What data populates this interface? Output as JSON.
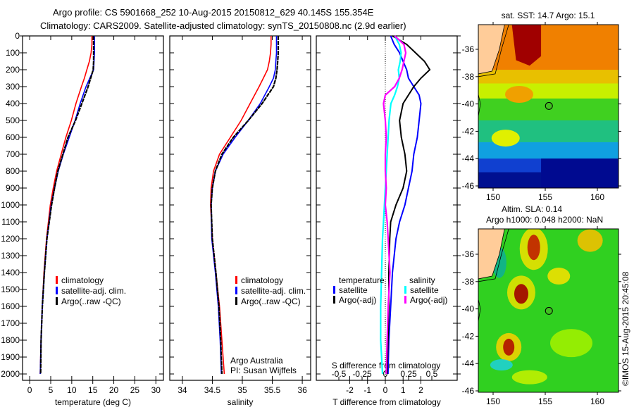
{
  "title": {
    "line1": "Argo profile: CS 5901668_252 10-Aug-2015 20150812_629 40.145S 155.354E",
    "line2": "Climatology: CARS2009. Satellite-adjusted climatology: synTS_20150808.nc (2.9d earlier)"
  },
  "colors": {
    "climatology": "#ff0000",
    "satellite": "#0000ff",
    "argo": "#000000",
    "sal_satellite": "#00ffff",
    "sal_argo": "#ff00ff"
  },
  "chart_data": [
    {
      "type": "line",
      "id": "temperature",
      "xlabel": "temperature (deg C)",
      "ylabel": "",
      "xlim": [
        -1.7,
        31.8
      ],
      "ylim": [
        2070,
        0
      ],
      "xticks": [
        0,
        5,
        10,
        15,
        20,
        25,
        30
      ],
      "yticks": [
        0,
        100,
        200,
        300,
        400,
        500,
        600,
        700,
        800,
        900,
        1000,
        1100,
        1200,
        1300,
        1400,
        1500,
        1600,
        1700,
        1800,
        1900,
        2000
      ],
      "depth": [
        0,
        50,
        100,
        150,
        200,
        250,
        300,
        400,
        500,
        600,
        700,
        800,
        900,
        1000,
        1200,
        1400,
        1600,
        1800,
        2000
      ],
      "series": [
        {
          "name": "climatology",
          "color": "#ff0000",
          "values": [
            14.8,
            14.8,
            14.6,
            14.2,
            13.6,
            13.0,
            12.3,
            11.0,
            9.9,
            8.6,
            7.5,
            6.4,
            5.6,
            4.9,
            4.0,
            3.4,
            3.0,
            2.7,
            2.5
          ]
        },
        {
          "name": "satellite-adj. clim.",
          "color": "#0000ff",
          "values": [
            15.4,
            15.4,
            15.4,
            15.3,
            15.2,
            14.3,
            13.4,
            12.0,
            10.8,
            9.4,
            8.0,
            6.8,
            5.9,
            5.1,
            4.1,
            3.5,
            3.0,
            2.7,
            2.5
          ]
        },
        {
          "name": "Argo(..raw -QC)",
          "color": "#000000",
          "values": [
            15.2,
            15.2,
            15.2,
            15.2,
            15.1,
            14.5,
            13.9,
            12.4,
            10.9,
            9.1,
            7.9,
            6.7,
            5.9,
            5.2,
            4.1,
            3.5,
            3.0,
            2.7,
            2.6
          ]
        }
      ],
      "legend": [
        "climatology",
        "satellite-adj. clim.",
        "Argo(..raw -QC)"
      ],
      "legend_position": "center-left"
    },
    {
      "type": "line",
      "id": "salinity",
      "xlabel": "salinity",
      "xlim": [
        33.79,
        36.14
      ],
      "ylim": [
        2070,
        0
      ],
      "xticks": [
        34,
        34.5,
        35,
        35.5,
        36
      ],
      "depth": [
        0,
        50,
        100,
        150,
        200,
        250,
        300,
        400,
        500,
        600,
        700,
        800,
        900,
        1000,
        1200,
        1400,
        1600,
        1800,
        2000
      ],
      "series": [
        {
          "name": "climatology",
          "color": "#ff0000",
          "values": [
            35.48,
            35.48,
            35.47,
            35.45,
            35.42,
            35.35,
            35.28,
            35.13,
            34.98,
            34.8,
            34.62,
            34.52,
            34.48,
            34.47,
            34.5,
            34.56,
            34.62,
            34.66,
            34.7
          ]
        },
        {
          "name": "satellite-adj. clim.",
          "color": "#0000ff",
          "values": [
            35.57,
            35.57,
            35.57,
            35.56,
            35.55,
            35.52,
            35.45,
            35.3,
            35.1,
            34.88,
            34.68,
            34.55,
            34.5,
            34.48,
            34.49,
            34.55,
            34.6,
            34.63,
            34.65
          ]
        },
        {
          "name": "Argo(..raw -QC)",
          "color": "#000000",
          "values": [
            35.6,
            35.6,
            35.6,
            35.59,
            35.58,
            35.56,
            35.52,
            35.33,
            35.1,
            34.85,
            34.66,
            34.55,
            34.5,
            34.48,
            34.5,
            34.56,
            34.61,
            34.64,
            34.66
          ]
        }
      ],
      "legend": [
        "climatology",
        "satellite-adj. clim.",
        "Argo(..raw -QC)"
      ],
      "annotation": [
        "Argo Australia",
        "PI: Susan Wijffels"
      ]
    },
    {
      "type": "line",
      "id": "difference",
      "xlabel": "T difference from climatology",
      "xlabel_top": "S difference from climatology",
      "xlim": [
        -3.88,
        4.04
      ],
      "xticks": [
        -2,
        -1,
        0,
        1,
        2
      ],
      "sticks": [
        -0.5,
        -0.25,
        0,
        0.25,
        0.5
      ],
      "stick_labels": [
        "-0.5",
        "-0.25",
        "0",
        "0.25",
        "0.5"
      ],
      "depth": [
        0,
        50,
        100,
        150,
        200,
        250,
        300,
        350,
        400,
        500,
        600,
        700,
        800,
        900,
        1000,
        1100,
        1200,
        1400,
        1600,
        1800,
        2000
      ],
      "series": [
        {
          "name": "temperature satellite",
          "var": "T",
          "color": "#0000ff",
          "values": [
            0.3,
            0.5,
            0.8,
            1.0,
            1.2,
            1.3,
            1.6,
            1.9,
            2.0,
            1.9,
            1.8,
            1.6,
            1.5,
            1.3,
            1.1,
            0.8,
            0.6,
            0.4,
            0.3,
            0.2,
            0.15
          ]
        },
        {
          "name": "temperature Argo(-adj)",
          "var": "T",
          "color": "#000000",
          "values": [
            0.4,
            1.2,
            1.7,
            2.2,
            2.5,
            2.0,
            1.6,
            1.3,
            1.0,
            0.8,
            0.9,
            1.1,
            1.2,
            1.0,
            0.6,
            0.3,
            0.25,
            0.2,
            0.2,
            0.15,
            0.1
          ]
        },
        {
          "name": "salinity satellite",
          "var": "S",
          "color": "#00ffff",
          "values": [
            0.1,
            0.15,
            0.17,
            0.16,
            0.14,
            0.15,
            0.13,
            0.1,
            0.06,
            0.04,
            0.03,
            0.02,
            0.01,
            0.0,
            -0.01,
            -0.02,
            -0.03,
            -0.04,
            -0.05,
            -0.05,
            -0.03
          ]
        },
        {
          "name": "salinity Argo(-adj)",
          "var": "S",
          "color": "#ff00ff",
          "values": [
            0.1,
            0.2,
            0.22,
            0.2,
            0.18,
            0.15,
            0.1,
            0.0,
            -0.02,
            0.0,
            0.01,
            0.0,
            0.0,
            0.01,
            0.0,
            0.02,
            0.03,
            0.05,
            0.03,
            0.02,
            0.01
          ]
        }
      ],
      "legend_headers": [
        "temperature",
        "salinity"
      ],
      "legend": [
        "satellite",
        "Argo(-adj)",
        "satellite",
        "Argo(-adj)"
      ]
    }
  ],
  "maps": {
    "sst": {
      "title": "sat. SST: 14.7 Argo: 15.1",
      "lat_ticks": [
        "-36",
        "-38",
        "-40",
        "-42",
        "-44",
        "-46"
      ],
      "lon_ticks": [
        "150",
        "155",
        "160"
      ]
    },
    "sla": {
      "title1": "Altim. SLA: 0.14",
      "title2": "Argo h1000: 0.048 h2000: NaN",
      "lat_ticks": [
        "-36",
        "-38",
        "-40",
        "-42",
        "-44",
        "-46"
      ],
      "lon_ticks": [
        "150",
        "155",
        "160"
      ]
    },
    "argo_position": {
      "lon": 155.354,
      "lat": -40.145
    }
  },
  "credit": "©IMOS 15-Aug-2015 20:45:08"
}
